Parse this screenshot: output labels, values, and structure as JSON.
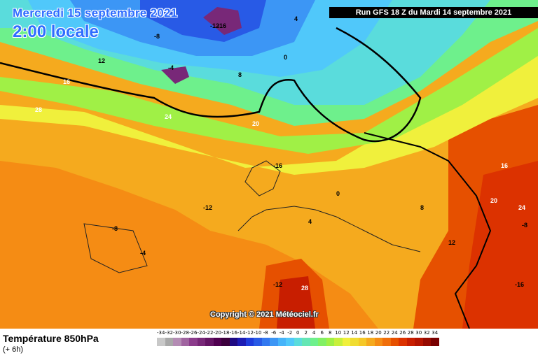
{
  "header": {
    "date": "Mercredi 15 septembre 2021",
    "time": "2:00 locale",
    "run": "Run GFS 18 Z du Mardi 14 septembre 2021"
  },
  "footer": {
    "title": "Température 850hPa",
    "subtitle": "(+ 6h)",
    "copyright": "Copyright © 2021 Météociel.fr"
  },
  "legend": {
    "ticks": [
      "-34",
      "-32",
      "-30",
      "-28",
      "-26",
      "-24",
      "-22",
      "-20",
      "-18",
      "-16",
      "-14",
      "-12",
      "-10",
      "-8",
      "-6",
      "-4",
      "-2",
      "0",
      "2",
      "4",
      "6",
      "8",
      "10",
      "12",
      "14",
      "16",
      "18",
      "20",
      "22",
      "24",
      "26",
      "28",
      "30",
      "32",
      "34"
    ],
    "colors": [
      "#c8c8c8",
      "#a8a8a8",
      "#b48cb4",
      "#a064a0",
      "#8c3c8c",
      "#782878",
      "#641464",
      "#500050",
      "#3c003c",
      "#1e0a82",
      "#1c1cb4",
      "#1e3cdc",
      "#285ae6",
      "#3278f0",
      "#3c96f5",
      "#46b4fa",
      "#50c8fa",
      "#5adcdc",
      "#64e6b4",
      "#6ef08c",
      "#82f064",
      "#a0f046",
      "#c8f03c",
      "#f0f03c",
      "#f0dc32",
      "#f5c828",
      "#f5aa1e",
      "#f58c14",
      "#f06e0a",
      "#e65000",
      "#dc3200",
      "#c81e00",
      "#b41400",
      "#960a00",
      "#780000"
    ]
  },
  "map_labels": [
    {
      "t": "-12",
      "c": "#000"
    },
    {
      "t": "-16",
      "c": "#000"
    },
    {
      "t": "-8",
      "c": "#000"
    },
    {
      "t": "-4",
      "c": "#000"
    },
    {
      "t": "0",
      "c": "#000"
    },
    {
      "t": "4",
      "c": "#000"
    },
    {
      "t": "8",
      "c": "#000"
    },
    {
      "t": "12",
      "c": "#000"
    },
    {
      "t": "16",
      "c": "#fff"
    },
    {
      "t": "20",
      "c": "#fff"
    },
    {
      "t": "24",
      "c": "#fff"
    },
    {
      "t": "28",
      "c": "#fff"
    }
  ]
}
